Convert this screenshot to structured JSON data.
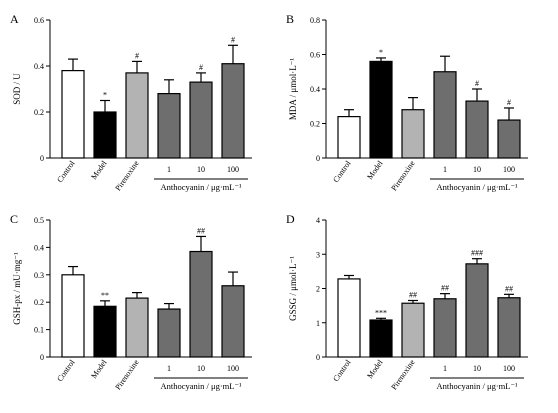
{
  "chart_data": [
    {
      "type": "bar",
      "panel": "A",
      "ylabel": "SOD / U",
      "ylim": [
        0,
        0.6
      ],
      "yticks": [
        0,
        0.2,
        0.4,
        0.6
      ],
      "categories": [
        "Control",
        "Model",
        "Pirenoxine",
        "1",
        "10",
        "100"
      ],
      "group_label": "Anthocyanin / μg·mL⁻¹",
      "values": [
        0.38,
        0.2,
        0.37,
        0.28,
        0.33,
        0.41
      ],
      "errors": [
        0.05,
        0.05,
        0.05,
        0.06,
        0.04,
        0.08
      ],
      "significance": [
        "",
        "*",
        "#",
        "",
        "#",
        "#"
      ],
      "colors": [
        "#ffffff",
        "#000000",
        "#b3b3b3",
        "#6e6e6e",
        "#6e6e6e",
        "#6e6e6e"
      ]
    },
    {
      "type": "bar",
      "panel": "B",
      "ylabel": "MDA / μmol·L⁻¹",
      "ylim": [
        0,
        0.8
      ],
      "yticks": [
        0,
        0.2,
        0.4,
        0.6,
        0.8
      ],
      "categories": [
        "Control",
        "Model",
        "Pirenoxine",
        "1",
        "10",
        "100"
      ],
      "group_label": "Anthocyanin / μg·mL⁻¹",
      "values": [
        0.24,
        0.56,
        0.28,
        0.5,
        0.33,
        0.22
      ],
      "errors": [
        0.04,
        0.02,
        0.07,
        0.09,
        0.07,
        0.07
      ],
      "significance": [
        "",
        "*",
        "",
        "",
        "#",
        "#"
      ],
      "colors": [
        "#ffffff",
        "#000000",
        "#b3b3b3",
        "#6e6e6e",
        "#6e6e6e",
        "#6e6e6e"
      ]
    },
    {
      "type": "bar",
      "panel": "C",
      "ylabel": "GSH-px / mU·mg⁻¹",
      "ylim": [
        0,
        0.5
      ],
      "yticks": [
        0,
        0.1,
        0.2,
        0.3,
        0.4,
        0.5
      ],
      "categories": [
        "Control",
        "Model",
        "Pirenoxine",
        "1",
        "10",
        "100"
      ],
      "group_label": "Anthocyanin / μg·mL⁻¹",
      "values": [
        0.3,
        0.185,
        0.215,
        0.175,
        0.385,
        0.26
      ],
      "errors": [
        0.03,
        0.02,
        0.02,
        0.02,
        0.055,
        0.05
      ],
      "significance": [
        "",
        "**",
        "",
        "",
        "##",
        ""
      ],
      "colors": [
        "#ffffff",
        "#000000",
        "#b3b3b3",
        "#6e6e6e",
        "#6e6e6e",
        "#6e6e6e"
      ]
    },
    {
      "type": "bar",
      "panel": "D",
      "ylabel": "GSSG / μmol·L⁻¹",
      "ylim": [
        0,
        4
      ],
      "yticks": [
        0,
        1,
        2,
        3,
        4
      ],
      "categories": [
        "Control",
        "Model",
        "Pirenoxine",
        "1",
        "10",
        "100"
      ],
      "group_label": "Anthocyanin / μg·mL⁻¹",
      "values": [
        2.28,
        1.08,
        1.57,
        1.7,
        2.72,
        1.73
      ],
      "errors": [
        0.1,
        0.05,
        0.08,
        0.15,
        0.15,
        0.1
      ],
      "significance": [
        "",
        "***",
        "##",
        "##",
        "###",
        "##"
      ],
      "colors": [
        "#ffffff",
        "#000000",
        "#b3b3b3",
        "#6e6e6e",
        "#6e6e6e",
        "#6e6e6e"
      ]
    }
  ]
}
